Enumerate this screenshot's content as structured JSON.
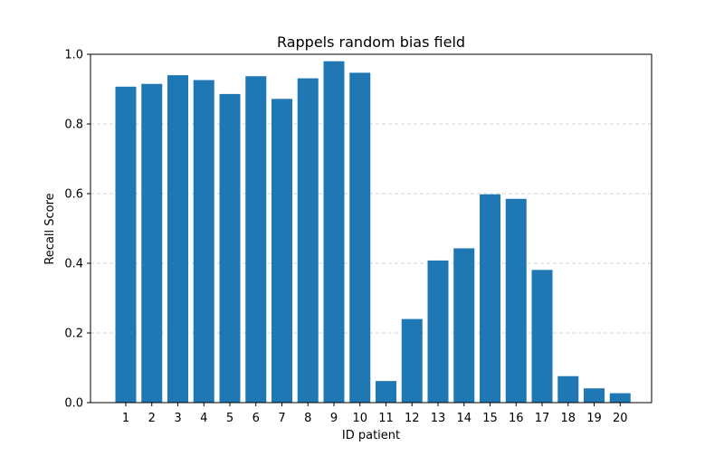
{
  "chart_data": {
    "type": "bar",
    "title": "Rappels random bias field",
    "xlabel": "ID patient",
    "ylabel": "Recall Score",
    "categories": [
      "1",
      "2",
      "3",
      "4",
      "5",
      "6",
      "7",
      "8",
      "9",
      "10",
      "11",
      "12",
      "13",
      "14",
      "15",
      "16",
      "17",
      "18",
      "19",
      "20"
    ],
    "values": [
      0.907,
      0.915,
      0.94,
      0.926,
      0.886,
      0.937,
      0.872,
      0.931,
      0.98,
      0.947,
      0.062,
      0.24,
      0.408,
      0.443,
      0.598,
      0.585,
      0.381,
      0.076,
      0.041,
      0.027
    ],
    "ylim": [
      0,
      1.0
    ],
    "yticks": [
      "0.0",
      "0.2",
      "0.4",
      "0.6",
      "0.8",
      "1.0"
    ],
    "grid": "horizontal dashed",
    "bar_color": "#1f77b4",
    "grid_color": "#c8c8c8"
  }
}
